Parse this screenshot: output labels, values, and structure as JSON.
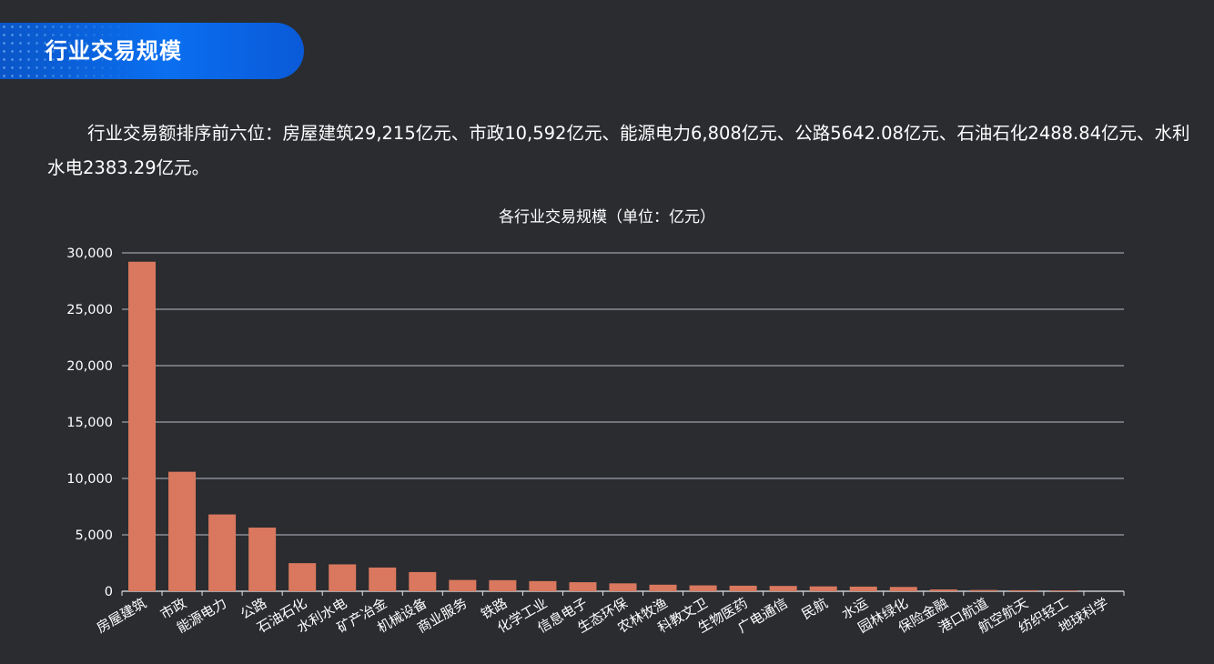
{
  "header": {
    "title": "行业交易规模"
  },
  "summary": {
    "text": "行业交易额排序前六位：房屋建筑29,215亿元、市政10,592亿元、能源电力6,808亿元、公路5642.08亿元、石油石化2488.84亿元、水利水电2383.29亿元。"
  },
  "chart_data": {
    "type": "bar",
    "title": "各行业交易规模（单位：亿元）",
    "xlabel": "",
    "ylabel": "",
    "ylim": [
      0,
      30000
    ],
    "yticks": [
      "0",
      "5,000",
      "10,000",
      "15,000",
      "20,000",
      "25,000",
      "30,000"
    ],
    "grid": true,
    "categories": [
      "房屋建筑",
      "市政",
      "能源电力",
      "公路",
      "石油石化",
      "水利水电",
      "矿产冶金",
      "机械设备",
      "商业服务",
      "铁路",
      "化学工业",
      "信息电子",
      "生态环保",
      "农林牧渔",
      "科教文卫",
      "生物医药",
      "广电通信",
      "民航",
      "水运",
      "园林绿化",
      "保险金融",
      "港口航道",
      "航空航天",
      "纺织轻工",
      "地球科学"
    ],
    "values": [
      29215,
      10592,
      6808,
      5642.08,
      2488.84,
      2383.29,
      2100,
      1700,
      1000,
      980,
      900,
      800,
      700,
      580,
      520,
      490,
      470,
      430,
      410,
      380,
      160,
      110,
      90,
      70,
      0
    ],
    "bar_color": "#d9785e"
  }
}
